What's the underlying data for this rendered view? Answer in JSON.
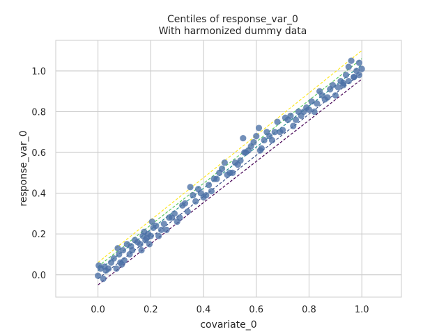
{
  "chart_data": {
    "type": "scatter",
    "title": "Centiles of response_var_0",
    "subtitle": "With harmonized dummy data",
    "xlabel": "covariate_0",
    "ylabel": "response_var_0",
    "xlim": [
      -0.16,
      1.15
    ],
    "ylim": [
      -0.11,
      1.15
    ],
    "xticks": [
      0.0,
      0.2,
      0.4,
      0.6,
      0.8,
      1.0
    ],
    "xtick_labels": [
      "0.0",
      "0.2",
      "0.4",
      "0.6",
      "0.8",
      "1.0"
    ],
    "yticks": [
      0.0,
      0.2,
      0.4,
      0.6,
      0.8,
      1.0
    ],
    "ytick_labels": [
      "0.0",
      "0.2",
      "0.4",
      "0.6",
      "0.8",
      "1.0"
    ],
    "grid": true,
    "point_color": "#4a6fa5",
    "centile_lines": [
      {
        "color": "#440154",
        "x": [
          0.0,
          1.0
        ],
        "y": [
          -0.05,
          0.96
        ]
      },
      {
        "color": "#3b528b",
        "x": [
          0.0,
          1.0
        ],
        "y": [
          -0.02,
          0.99
        ]
      },
      {
        "color": "#21918c",
        "x": [
          0.0,
          1.0
        ],
        "y": [
          0.02,
          1.03
        ]
      },
      {
        "color": "#5ec962",
        "x": [
          0.0,
          1.0
        ],
        "y": [
          0.04,
          1.06
        ]
      },
      {
        "color": "#fde725",
        "x": [
          0.0,
          1.0
        ],
        "y": [
          0.06,
          1.1
        ]
      }
    ],
    "points": {
      "x": [
        0.0,
        0.003,
        0.01,
        0.02,
        0.025,
        0.03,
        0.04,
        0.05,
        0.06,
        0.07,
        0.075,
        0.08,
        0.085,
        0.09,
        0.095,
        0.1,
        0.11,
        0.12,
        0.125,
        0.13,
        0.14,
        0.15,
        0.16,
        0.165,
        0.17,
        0.175,
        0.18,
        0.185,
        0.19,
        0.195,
        0.2,
        0.205,
        0.21,
        0.22,
        0.23,
        0.24,
        0.25,
        0.26,
        0.27,
        0.28,
        0.29,
        0.3,
        0.31,
        0.32,
        0.33,
        0.34,
        0.35,
        0.36,
        0.37,
        0.38,
        0.39,
        0.4,
        0.41,
        0.42,
        0.43,
        0.44,
        0.45,
        0.46,
        0.47,
        0.48,
        0.49,
        0.5,
        0.51,
        0.52,
        0.53,
        0.54,
        0.55,
        0.555,
        0.56,
        0.57,
        0.58,
        0.59,
        0.6,
        0.61,
        0.615,
        0.62,
        0.63,
        0.64,
        0.65,
        0.66,
        0.67,
        0.68,
        0.69,
        0.7,
        0.71,
        0.72,
        0.73,
        0.74,
        0.75,
        0.76,
        0.77,
        0.78,
        0.79,
        0.8,
        0.81,
        0.82,
        0.83,
        0.84,
        0.85,
        0.86,
        0.87,
        0.88,
        0.89,
        0.9,
        0.91,
        0.92,
        0.93,
        0.94,
        0.95,
        0.96,
        0.97,
        0.98,
        0.99,
        1.0,
        0.93,
        0.99,
        0.97,
        0.95
      ],
      "y": [
        -0.005,
        0.045,
        0.03,
        -0.02,
        0.04,
        0.02,
        0.03,
        0.06,
        0.08,
        0.03,
        0.13,
        0.1,
        0.06,
        0.05,
        0.12,
        0.07,
        0.15,
        0.1,
        0.14,
        0.12,
        0.17,
        0.16,
        0.15,
        0.12,
        0.19,
        0.21,
        0.17,
        0.18,
        0.2,
        0.15,
        0.19,
        0.26,
        0.23,
        0.24,
        0.19,
        0.22,
        0.25,
        0.22,
        0.28,
        0.28,
        0.3,
        0.26,
        0.28,
        0.34,
        0.35,
        0.31,
        0.43,
        0.39,
        0.36,
        0.42,
        0.4,
        0.38,
        0.39,
        0.44,
        0.41,
        0.47,
        0.47,
        0.5,
        0.52,
        0.55,
        0.49,
        0.5,
        0.5,
        0.55,
        0.54,
        0.56,
        0.67,
        0.6,
        0.6,
        0.61,
        0.63,
        0.65,
        0.68,
        0.72,
        0.61,
        0.62,
        0.66,
        0.7,
        0.68,
        0.66,
        0.7,
        0.75,
        0.7,
        0.71,
        0.77,
        0.76,
        0.78,
        0.73,
        0.76,
        0.8,
        0.78,
        0.8,
        0.82,
        0.81,
        0.85,
        0.8,
        0.84,
        0.9,
        0.88,
        0.86,
        0.87,
        0.91,
        0.93,
        0.88,
        0.92,
        0.95,
        0.94,
        0.98,
        1.02,
        1.05,
        0.97,
        1.0,
        1.04,
        1.01,
        0.93,
        0.98,
        0.97,
        0.95
      ]
    }
  }
}
